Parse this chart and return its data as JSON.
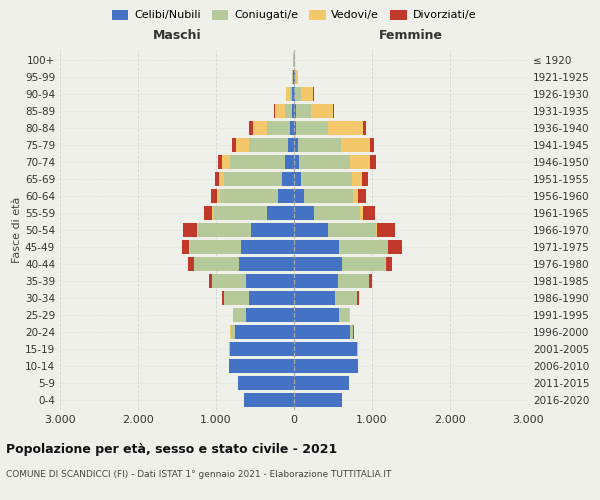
{
  "age_groups": [
    "0-4",
    "5-9",
    "10-14",
    "15-19",
    "20-24",
    "25-29",
    "30-34",
    "35-39",
    "40-44",
    "45-49",
    "50-54",
    "55-59",
    "60-64",
    "65-69",
    "70-74",
    "75-79",
    "80-84",
    "85-89",
    "90-94",
    "95-99",
    "100+"
  ],
  "birth_years": [
    "2016-2020",
    "2011-2015",
    "2006-2010",
    "2001-2005",
    "1996-2000",
    "1991-1995",
    "1986-1990",
    "1981-1985",
    "1976-1980",
    "1971-1975",
    "1966-1970",
    "1961-1965",
    "1956-1960",
    "1951-1955",
    "1946-1950",
    "1941-1945",
    "1936-1940",
    "1931-1935",
    "1926-1930",
    "1921-1925",
    "≤ 1920"
  ],
  "maschi": {
    "celibi": [
      640,
      720,
      830,
      820,
      760,
      620,
      580,
      620,
      700,
      680,
      550,
      350,
      200,
      150,
      120,
      80,
      50,
      30,
      20,
      10,
      5
    ],
    "coniugati": [
      0,
      0,
      0,
      8,
      50,
      160,
      320,
      430,
      580,
      650,
      680,
      680,
      750,
      750,
      700,
      500,
      300,
      90,
      30,
      10,
      5
    ],
    "vedovi": [
      0,
      0,
      0,
      0,
      5,
      2,
      2,
      5,
      5,
      10,
      15,
      20,
      40,
      60,
      100,
      160,
      180,
      120,
      50,
      8,
      2
    ],
    "divorziati": [
      0,
      0,
      0,
      0,
      5,
      5,
      20,
      30,
      80,
      100,
      180,
      100,
      80,
      50,
      60,
      60,
      50,
      15,
      5,
      2,
      2
    ]
  },
  "femmine": {
    "nubili": [
      620,
      700,
      820,
      810,
      720,
      580,
      530,
      570,
      620,
      580,
      430,
      250,
      130,
      90,
      70,
      50,
      30,
      20,
      15,
      10,
      5
    ],
    "coniugate": [
      0,
      0,
      0,
      5,
      40,
      130,
      280,
      390,
      550,
      620,
      620,
      600,
      620,
      650,
      650,
      550,
      400,
      200,
      80,
      15,
      5
    ],
    "vedove": [
      0,
      0,
      0,
      0,
      2,
      2,
      2,
      5,
      5,
      10,
      20,
      30,
      70,
      130,
      250,
      380,
      450,
      280,
      150,
      20,
      5
    ],
    "divorziate": [
      0,
      0,
      0,
      0,
      5,
      5,
      20,
      30,
      80,
      180,
      220,
      160,
      100,
      80,
      80,
      50,
      40,
      10,
      5,
      2,
      2
    ]
  },
  "colors": {
    "celibi_nubili": "#4472c4",
    "coniugati": "#b5c99a",
    "vedovi": "#f4c86a",
    "divorziati": "#c0392b"
  },
  "xlim": 3000,
  "title": "Popolazione per età, sesso e stato civile - 2021",
  "subtitle": "COMUNE DI SCANDICCI (FI) - Dati ISTAT 1° gennaio 2021 - Elaborazione TUTTITALIA.IT",
  "ylabel_left": "Fasce di età",
  "xlabel_left": "Maschi",
  "xlabel_right": "Femmine",
  "background_color": "#f0f0eb",
  "grid_color": "#cccccc"
}
